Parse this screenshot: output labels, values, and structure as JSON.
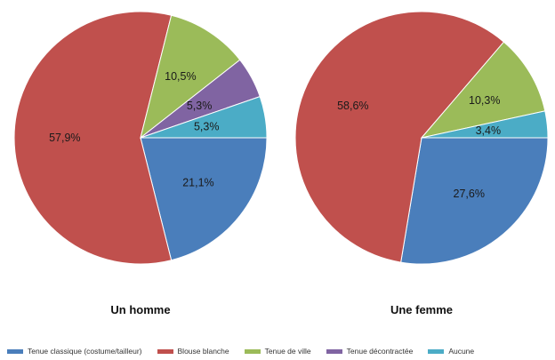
{
  "chart_data": [
    {
      "type": "pie",
      "title": "Un homme",
      "slices": [
        {
          "category": "Tenue classique (costume/tailleur)",
          "value": 21.1,
          "label": "21,1%"
        },
        {
          "category": "Blouse blanche",
          "value": 57.9,
          "label": "57,9%"
        },
        {
          "category": "Tenue de ville",
          "value": 10.5,
          "label": "10,5%"
        },
        {
          "category": "Tenue décontractée",
          "value": 5.3,
          "label": "5,3%"
        },
        {
          "category": "Aucune",
          "value": 5.3,
          "label": "5,3%"
        }
      ]
    },
    {
      "type": "pie",
      "title": "Une femme",
      "slices": [
        {
          "category": "Tenue classique (costume/tailleur)",
          "value": 27.6,
          "label": "27,6%"
        },
        {
          "category": "Blouse blanche",
          "value": 58.6,
          "label": "58,6%"
        },
        {
          "category": "Tenue de ville",
          "value": 10.3,
          "label": "10,3%"
        },
        {
          "category": "Tenue décontractée",
          "value": 0,
          "label": ""
        },
        {
          "category": "Aucune",
          "value": 3.4,
          "label": "3,4%"
        }
      ]
    }
  ],
  "legend": [
    {
      "label": "Tenue classique (costume/tailleur)",
      "color": "#4a7ebb"
    },
    {
      "label": "Blouse blanche",
      "color": "#c0504d"
    },
    {
      "label": "Tenue de ville",
      "color": "#9bbb59"
    },
    {
      "label": "Tenue décontractée",
      "color": "#8064a2"
    },
    {
      "label": "Aucune",
      "color": "#4bacc6"
    }
  ],
  "legend_position": "bottom"
}
